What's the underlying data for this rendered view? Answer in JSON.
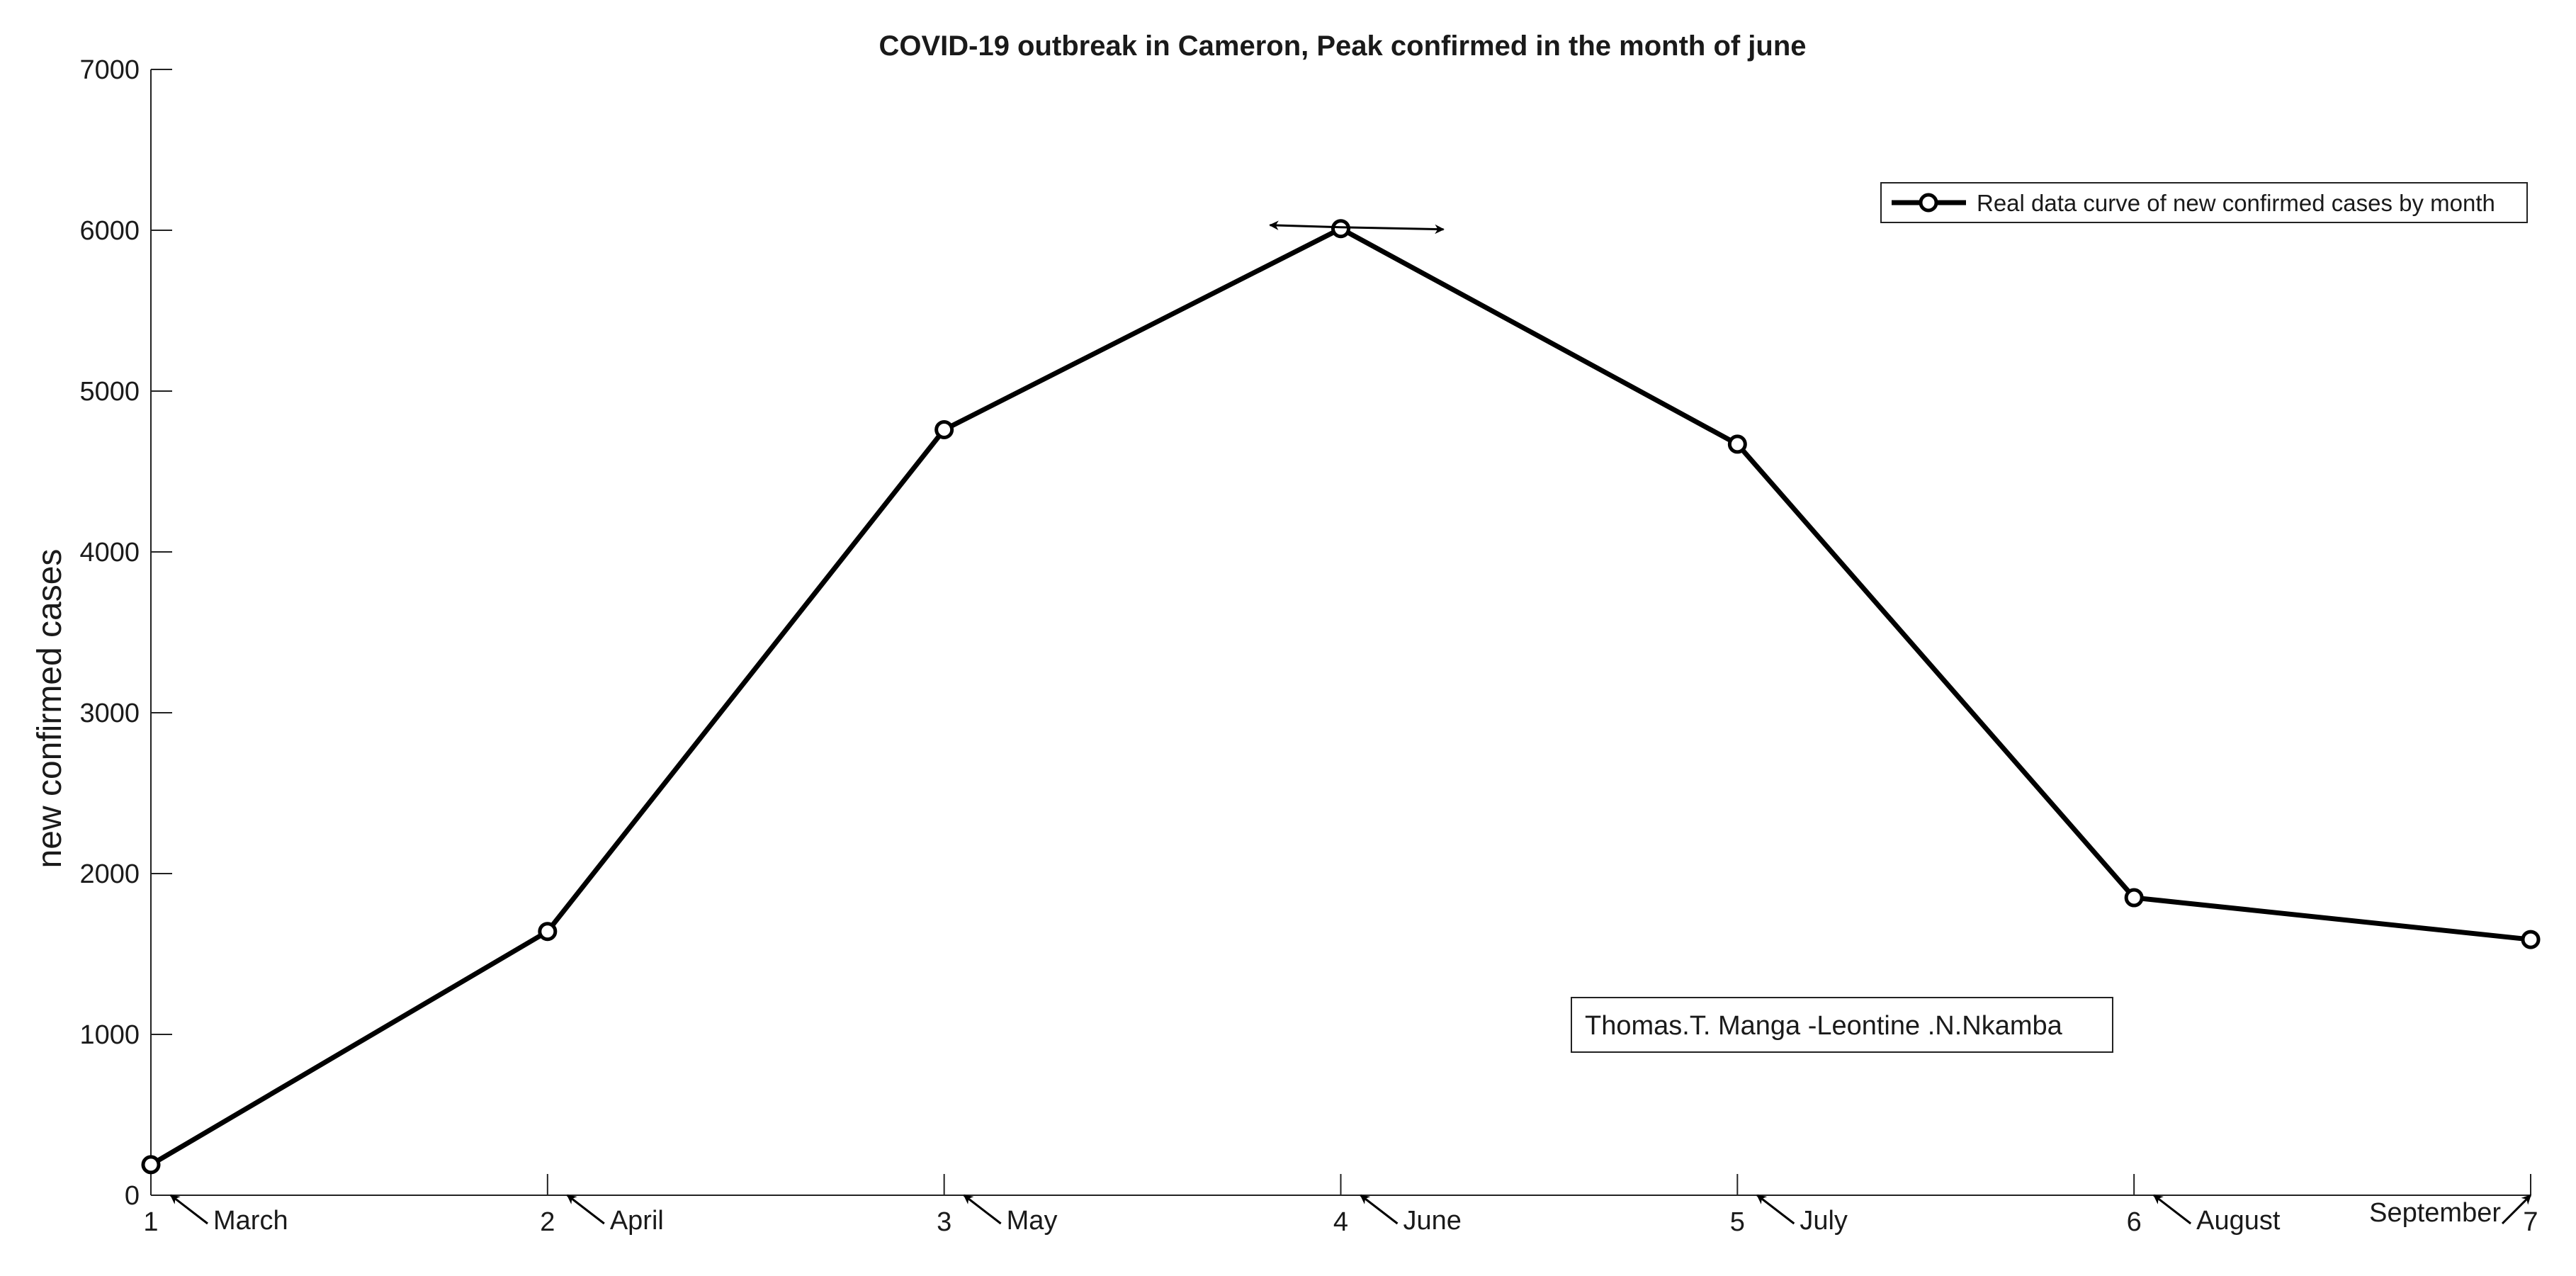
{
  "chart_data": {
    "type": "line",
    "title": "COVID-19 outbreak in Cameron, Peak confirmed in the month of june",
    "xlabel": "",
    "ylabel": "new confirmed cases",
    "xlim": [
      1,
      7
    ],
    "ylim": [
      0,
      7000
    ],
    "xticks": [
      1,
      2,
      3,
      4,
      5,
      6,
      7
    ],
    "yticks": [
      0,
      1000,
      2000,
      3000,
      4000,
      5000,
      6000,
      7000
    ],
    "grid": false,
    "legend_position": "top-right",
    "series": [
      {
        "name": "Real data curve of new confirmed cases by month",
        "color": "#000000",
        "marker": "circle",
        "x": [
          1,
          2,
          3,
          4,
          5,
          6,
          7
        ],
        "y": [
          190,
          1640,
          4760,
          6010,
          4670,
          1850,
          1590
        ]
      }
    ],
    "month_annotations": [
      {
        "x": 1,
        "label": "March"
      },
      {
        "x": 2,
        "label": "April"
      },
      {
        "x": 3,
        "label": "May"
      },
      {
        "x": 4,
        "label": "June"
      },
      {
        "x": 5,
        "label": "July"
      },
      {
        "x": 6,
        "label": "August"
      },
      {
        "x": 7,
        "label": "September"
      }
    ],
    "peak_annotation": {
      "x": 4,
      "y": 6010
    },
    "author_box": "Thomas.T. Manga -Leontine .N.Nkamba"
  }
}
